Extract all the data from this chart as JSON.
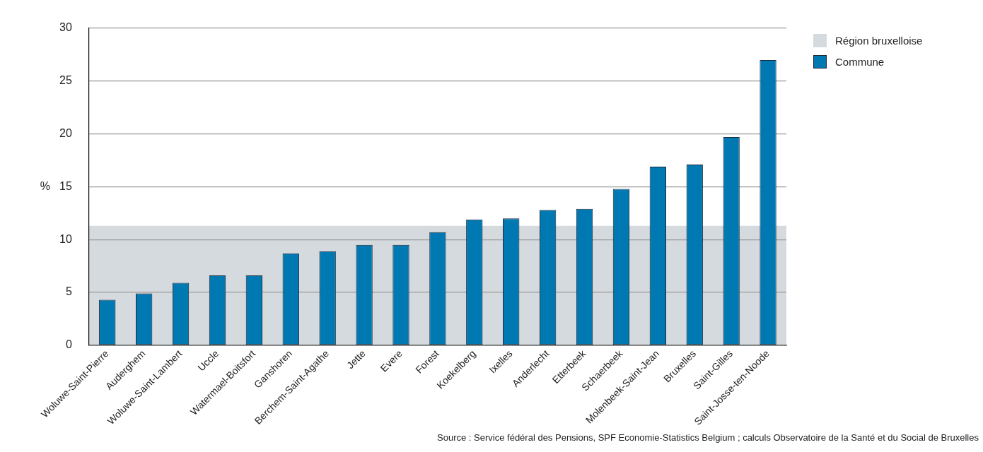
{
  "chart_data": {
    "type": "bar",
    "ylabel": "%",
    "categories": [
      "Woluwe-Saint-Pierre",
      "Auderghem",
      "Woluwe-Saint-Lambert",
      "Uccle",
      "Watermael-Boitsfort",
      "Ganshoren",
      "Berchem-Saint-Agathe",
      "Jette",
      "Evere",
      "Forest",
      "Koekelberg",
      "Ixelles",
      "Anderlecht",
      "Etterbeek",
      "Schaerbeek",
      "Molenbeek-Saint-Jean",
      "Bruxelles",
      "Saint-Gilles",
      "Saint-Josse-ten-Noode"
    ],
    "series": [
      {
        "name": "Commune",
        "color": "#0079b2",
        "values": [
          4.3,
          4.9,
          5.9,
          6.6,
          6.6,
          8.7,
          8.9,
          9.5,
          9.5,
          10.7,
          11.9,
          12.0,
          12.8,
          12.9,
          14.8,
          16.9,
          17.1,
          19.7,
          27.0
        ]
      }
    ],
    "bands": [
      {
        "axis": "y",
        "from": 0,
        "to": 11.3,
        "label": "Région bruxelloise",
        "color": "#d4dade"
      }
    ],
    "ylim": [
      0,
      30
    ],
    "yticks": [
      0,
      5,
      10,
      15,
      20,
      25,
      30
    ],
    "grid": "y",
    "legend": "top right",
    "annotations": [
      "Source : Service fédéral des Pensions, SPF Economie-Statistics Belgium ; calculs Observatoire de la Santé et du Social de Bruxelles"
    ]
  }
}
